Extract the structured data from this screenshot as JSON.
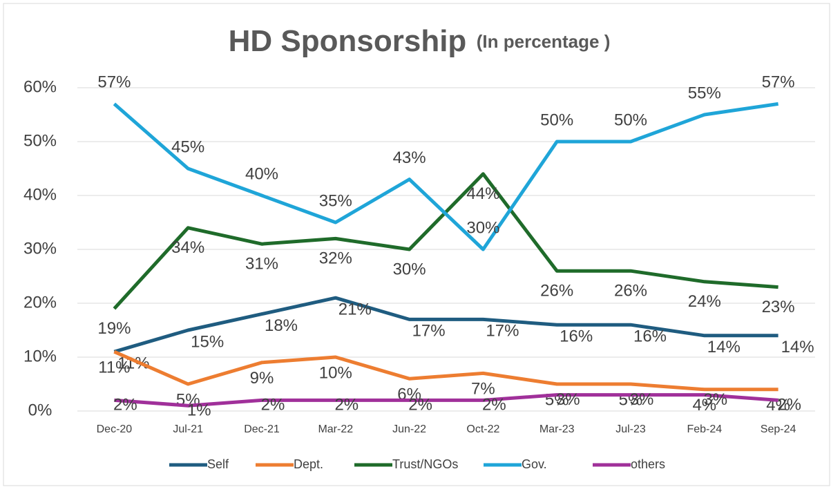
{
  "chart_data": {
    "type": "line",
    "title": "HD Sponsorship",
    "subtitle": "(In percentage )",
    "categories": [
      "Dec-20",
      "Jul-21",
      "Dec-21",
      "Mar-22",
      "Jun-22",
      "Oct-22",
      "Mar-23",
      "Jul-23",
      "Feb-24",
      "Sep-24"
    ],
    "series": [
      {
        "name": "Self",
        "color": "#1f5c80",
        "values": [
          11,
          15,
          18,
          21,
          17,
          17,
          16,
          16,
          14,
          14
        ],
        "value_labels": [
          "11%",
          "15%",
          "18%",
          "21%",
          "17%",
          "17%",
          "16%",
          "16%",
          "14%",
          "14%"
        ]
      },
      {
        "name": "Dept.",
        "color": "#ed7d31",
        "values": [
          11,
          5,
          9,
          10,
          6,
          7,
          5,
          5,
          4,
          4
        ],
        "value_labels": [
          "11%",
          "5%",
          "9%",
          "10%",
          "6%",
          "7%",
          "5%",
          "5%",
          "4%",
          "4%"
        ]
      },
      {
        "name": "Trust/NGOs",
        "color": "#1f6b2a",
        "values": [
          19,
          34,
          31,
          32,
          30,
          44,
          26,
          26,
          24,
          23
        ],
        "value_labels": [
          "19%",
          "34%",
          "31%",
          "32%",
          "30%",
          "44%",
          "26%",
          "26%",
          "24%",
          "23%"
        ]
      },
      {
        "name": "Gov.",
        "color": "#1fa5d8",
        "values": [
          57,
          45,
          40,
          35,
          43,
          30,
          50,
          50,
          55,
          57
        ],
        "value_labels": [
          "57%",
          "45%",
          "40%",
          "35%",
          "43%",
          "30%",
          "50%",
          "50%",
          "55%",
          "57%"
        ]
      },
      {
        "name": "others",
        "color": "#a0309a",
        "values": [
          2,
          1,
          2,
          2,
          2,
          2,
          3,
          3,
          3,
          2
        ],
        "value_labels": [
          "2%",
          "1%",
          "2%",
          "2%",
          "2%",
          "2%",
          "3%",
          "3%",
          "3%",
          "2%"
        ]
      }
    ],
    "ylim": [
      0,
      60
    ],
    "yticks": [
      {
        "value": 0,
        "label": "0%"
      },
      {
        "value": 10,
        "label": "10%"
      },
      {
        "value": 20,
        "label": "20%"
      },
      {
        "value": 30,
        "label": "30%"
      },
      {
        "value": 40,
        "label": "40%"
      },
      {
        "value": 50,
        "label": "50%"
      },
      {
        "value": 60,
        "label": "60%"
      }
    ],
    "grid": true,
    "legend": "bottom"
  }
}
